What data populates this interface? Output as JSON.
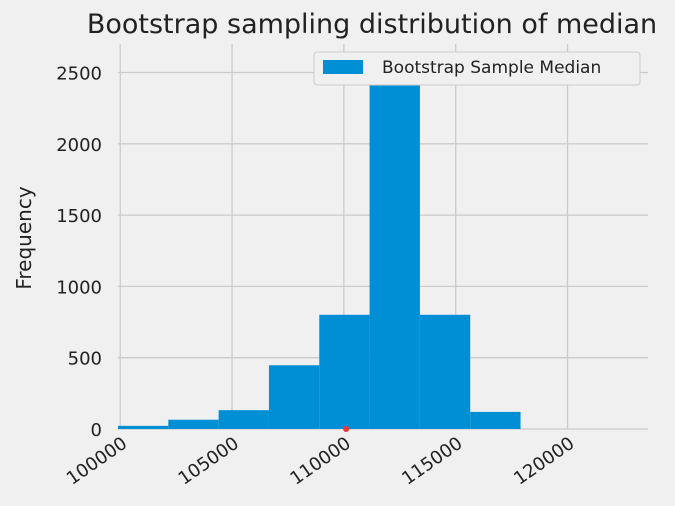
{
  "chart_data": {
    "type": "bar",
    "title": "Bootstrap sampling distribution of median",
    "xlabel": "",
    "ylabel": "Frequency",
    "bin_edges": [
      99900,
      102150,
      104400,
      106650,
      108900,
      111150,
      113400,
      115650,
      117900
    ],
    "values": [
      22,
      65,
      132,
      447,
      801,
      2592,
      801,
      120
    ],
    "series": [
      {
        "name": "Bootstrap Sample Median"
      }
    ],
    "xlim": [
      99900,
      123600
    ],
    "ylim": [
      0,
      2700
    ],
    "xticks": [
      100000,
      105000,
      110000,
      115000,
      120000
    ],
    "yticks": [
      0,
      500,
      1000,
      1500,
      2000,
      2500
    ],
    "legend_position": "top-right",
    "grid": true,
    "colors": {
      "bar": "#008fd5",
      "marker": "#e5383b",
      "grid": "#cbcbcb",
      "background": "#f0f0f0",
      "text": "#222222"
    },
    "marker": {
      "x": 110100,
      "y": 0
    }
  }
}
